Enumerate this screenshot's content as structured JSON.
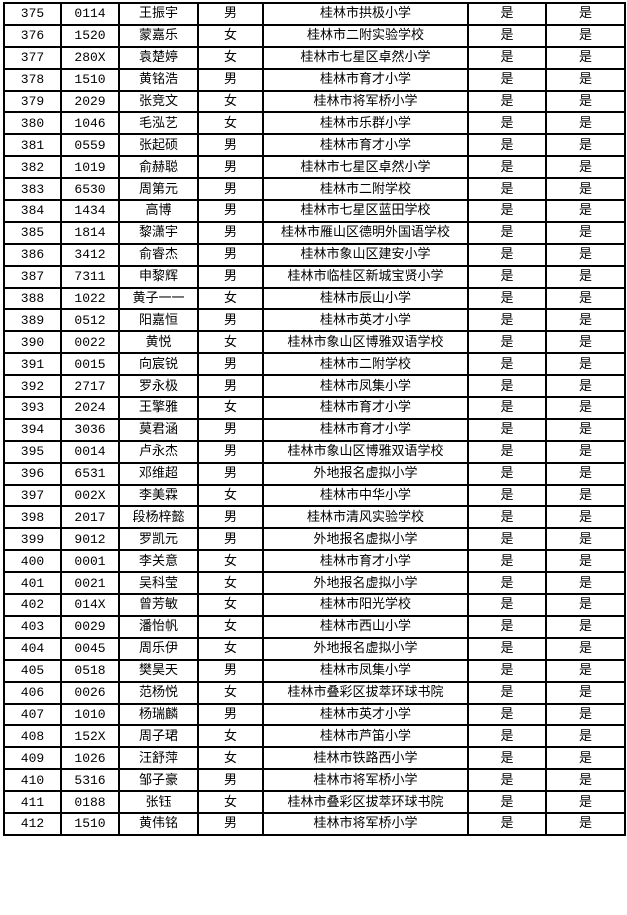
{
  "rows": [
    [
      "375",
      "0114",
      "王振宇",
      "男",
      "桂林市拱极小学",
      "是",
      "是"
    ],
    [
      "376",
      "1520",
      "蒙嘉乐",
      "女",
      "桂林市二附实验学校",
      "是",
      "是"
    ],
    [
      "377",
      "280X",
      "袁楚婷",
      "女",
      "桂林市七星区卓然小学",
      "是",
      "是"
    ],
    [
      "378",
      "1510",
      "黄铭浩",
      "男",
      "桂林市育才小学",
      "是",
      "是"
    ],
    [
      "379",
      "2029",
      "张竞文",
      "女",
      "桂林市将军桥小学",
      "是",
      "是"
    ],
    [
      "380",
      "1046",
      "毛泓艺",
      "女",
      "桂林市乐群小学",
      "是",
      "是"
    ],
    [
      "381",
      "0559",
      "张起硕",
      "男",
      "桂林市育才小学",
      "是",
      "是"
    ],
    [
      "382",
      "1019",
      "俞赫聪",
      "男",
      "桂林市七星区卓然小学",
      "是",
      "是"
    ],
    [
      "383",
      "6530",
      "周第元",
      "男",
      "桂林市二附学校",
      "是",
      "是"
    ],
    [
      "384",
      "1434",
      "高博",
      "男",
      "桂林市七星区蓝田学校",
      "是",
      "是"
    ],
    [
      "385",
      "1814",
      "黎潇宇",
      "男",
      "桂林市雁山区德明外国语学校",
      "是",
      "是"
    ],
    [
      "386",
      "3412",
      "俞睿杰",
      "男",
      "桂林市象山区建安小学",
      "是",
      "是"
    ],
    [
      "387",
      "7311",
      "申黎辉",
      "男",
      "桂林市临桂区新城宝贤小学",
      "是",
      "是"
    ],
    [
      "388",
      "1022",
      "黄子一一",
      "女",
      "桂林市辰山小学",
      "是",
      "是"
    ],
    [
      "389",
      "0512",
      "阳嘉恒",
      "男",
      "桂林市英才小学",
      "是",
      "是"
    ],
    [
      "390",
      "0022",
      "黄悦",
      "女",
      "桂林市象山区博雅双语学校",
      "是",
      "是"
    ],
    [
      "391",
      "0015",
      "向宸锐",
      "男",
      "桂林市二附学校",
      "是",
      "是"
    ],
    [
      "392",
      "2717",
      "罗永极",
      "男",
      "桂林市凤集小学",
      "是",
      "是"
    ],
    [
      "393",
      "2024",
      "王擎雅",
      "女",
      "桂林市育才小学",
      "是",
      "是"
    ],
    [
      "394",
      "3036",
      "莫君涵",
      "男",
      "桂林市育才小学",
      "是",
      "是"
    ],
    [
      "395",
      "0014",
      "卢永杰",
      "男",
      "桂林市象山区博雅双语学校",
      "是",
      "是"
    ],
    [
      "396",
      "6531",
      "邓维超",
      "男",
      "外地报名虚拟小学",
      "是",
      "是"
    ],
    [
      "397",
      "002X",
      "李美霖",
      "女",
      "桂林市中华小学",
      "是",
      "是"
    ],
    [
      "398",
      "2017",
      "段杨梓懿",
      "男",
      "桂林市清风实验学校",
      "是",
      "是"
    ],
    [
      "399",
      "9012",
      "罗凯元",
      "男",
      "外地报名虚拟小学",
      "是",
      "是"
    ],
    [
      "400",
      "0001",
      "李关意",
      "女",
      "桂林市育才小学",
      "是",
      "是"
    ],
    [
      "401",
      "0021",
      "吴科莹",
      "女",
      "外地报名虚拟小学",
      "是",
      "是"
    ],
    [
      "402",
      "014X",
      "曾芳敏",
      "女",
      "桂林市阳光学校",
      "是",
      "是"
    ],
    [
      "403",
      "0029",
      "潘怡帆",
      "女",
      "桂林市西山小学",
      "是",
      "是"
    ],
    [
      "404",
      "0045",
      "周乐伊",
      "女",
      "外地报名虚拟小学",
      "是",
      "是"
    ],
    [
      "405",
      "0518",
      "樊昊天",
      "男",
      "桂林市凤集小学",
      "是",
      "是"
    ],
    [
      "406",
      "0026",
      "范杨悦",
      "女",
      "桂林市叠彩区拔萃环球书院",
      "是",
      "是"
    ],
    [
      "407",
      "1010",
      "杨瑞麟",
      "男",
      "桂林市英才小学",
      "是",
      "是"
    ],
    [
      "408",
      "152X",
      "周子珺",
      "女",
      "桂林市芦笛小学",
      "是",
      "是"
    ],
    [
      "409",
      "1026",
      "汪舒萍",
      "女",
      "桂林市铁路西小学",
      "是",
      "是"
    ],
    [
      "410",
      "5316",
      "邹子豪",
      "男",
      "桂林市将军桥小学",
      "是",
      "是"
    ],
    [
      "411",
      "0188",
      "张钰",
      "女",
      "桂林市叠彩区拔萃环球书院",
      "是",
      "是"
    ],
    [
      "412",
      "1510",
      "黄伟铭",
      "男",
      "桂林市将军桥小学",
      "是",
      "是"
    ]
  ]
}
